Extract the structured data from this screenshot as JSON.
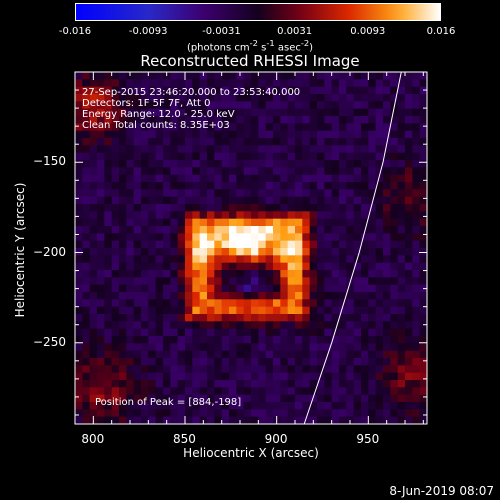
{
  "colorbar": {
    "ticks": [
      "-0.016",
      "-0.0093",
      "-0.0031",
      "0.0031",
      "0.0093",
      "0.016"
    ],
    "units_html": "(photons cm<sup>-2</sup> s<sup>-1</sup> asec<sup>-2</sup>)",
    "range": [
      -0.016,
      0.016
    ]
  },
  "chart_data": {
    "type": "heatmap",
    "title": "Reconstructed RHESSI Image",
    "xlabel": "Heliocentric X (arcsec)",
    "ylabel": "Heliocentric Y (arcsec)",
    "xlim": [
      790,
      982
    ],
    "ylim": [
      -295,
      -100
    ],
    "xticks": [
      800,
      850,
      900,
      950
    ],
    "yticks": [
      -150,
      -200,
      -250
    ],
    "annotations": [
      "27-Sep-2015 23:46:20.000 to 23:53:40.000",
      "Detectors: 1F 5F 7F, Att 0",
      "Energy Range: 12.0 - 25.0 keV",
      "Clean   Total counts: 8.35E+03"
    ],
    "peak_text": "Position of Peak = [884,-198]",
    "peak_position": [
      884,
      -198
    ],
    "limb": [
      [
        915,
        -295
      ],
      [
        930,
        -250
      ],
      [
        945,
        -200
      ],
      [
        958,
        -150
      ],
      [
        968,
        -100
      ]
    ]
  },
  "footer_date": "8-Jun-2019 08:07"
}
